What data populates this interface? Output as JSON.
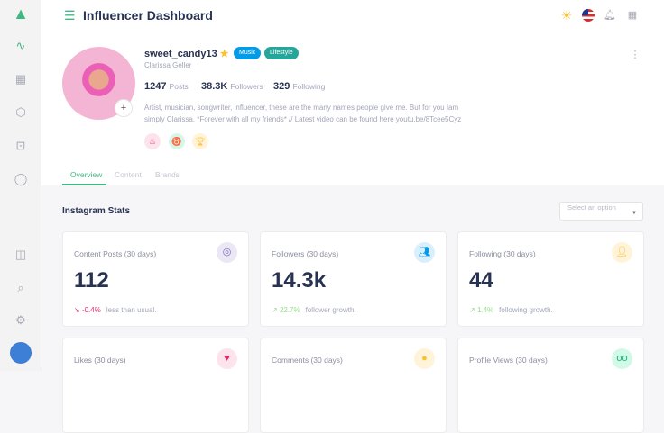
{
  "header": {
    "title": "Influencer Dashboard",
    "icons": [
      "menu-icon",
      "sun-icon",
      "us-flag-icon",
      "bell-icon",
      "apps-grid-icon"
    ]
  },
  "sidebar": {
    "icons": [
      "logo",
      "activity-icon",
      "grid-icon",
      "box-icon",
      "cpu-icon",
      "chat-icon",
      "panel-icon",
      "search-icon",
      "settings-icon",
      "user-avatar"
    ]
  },
  "profile": {
    "username": "sweet_candy13",
    "tags": [
      {
        "label": "Music",
        "color": "#039be5"
      },
      {
        "label": "Lifestyle",
        "color": "#26a69a"
      }
    ],
    "full_name": "Clarissa Geller",
    "stats": [
      {
        "value": "1247",
        "label": "Posts"
      },
      {
        "value": "38.3K",
        "label": "Followers"
      },
      {
        "value": "329",
        "label": "Following"
      }
    ],
    "bio": "Artist, musician, songwriter, influencer, these are the many names people give me. But for you Iam simply Clarissa. *Forever with all my friends* // Latest video can be found here youtu.be/8Tcee5Cyz",
    "badges": [
      "fire-icon",
      "medal-icon",
      "trophy-icon"
    ]
  },
  "tabs": [
    {
      "label": "Overview",
      "active": true
    },
    {
      "label": "Content"
    },
    {
      "label": "Brands"
    }
  ],
  "section": {
    "title": "Instagram Stats",
    "select_placeholder": "Select an option"
  },
  "cards": [
    {
      "label": "Content Posts (30 days)",
      "value": "112",
      "change": "-0.4%",
      "change_text": "less than usual.",
      "trend": "down",
      "icon": "instagram-icon"
    },
    {
      "label": "Followers (30 days)",
      "value": "14.3k",
      "change": "22.7%",
      "change_text": "follower growth.",
      "trend": "up",
      "icon": "users-icon"
    },
    {
      "label": "Following (30 days)",
      "value": "44",
      "change": "1.4%",
      "change_text": "following growth.",
      "trend": "up",
      "icon": "user-plus-icon"
    },
    {
      "label": "Likes (30 days)",
      "icon": "heart-icon"
    },
    {
      "label": "Comments (30 days)",
      "icon": "comment-icon"
    },
    {
      "label": "Profile Views (30 days)",
      "icon": "glasses-icon"
    }
  ],
  "colors": {
    "accent": "#41b883",
    "down": "#e62965",
    "up": "#93e088"
  }
}
